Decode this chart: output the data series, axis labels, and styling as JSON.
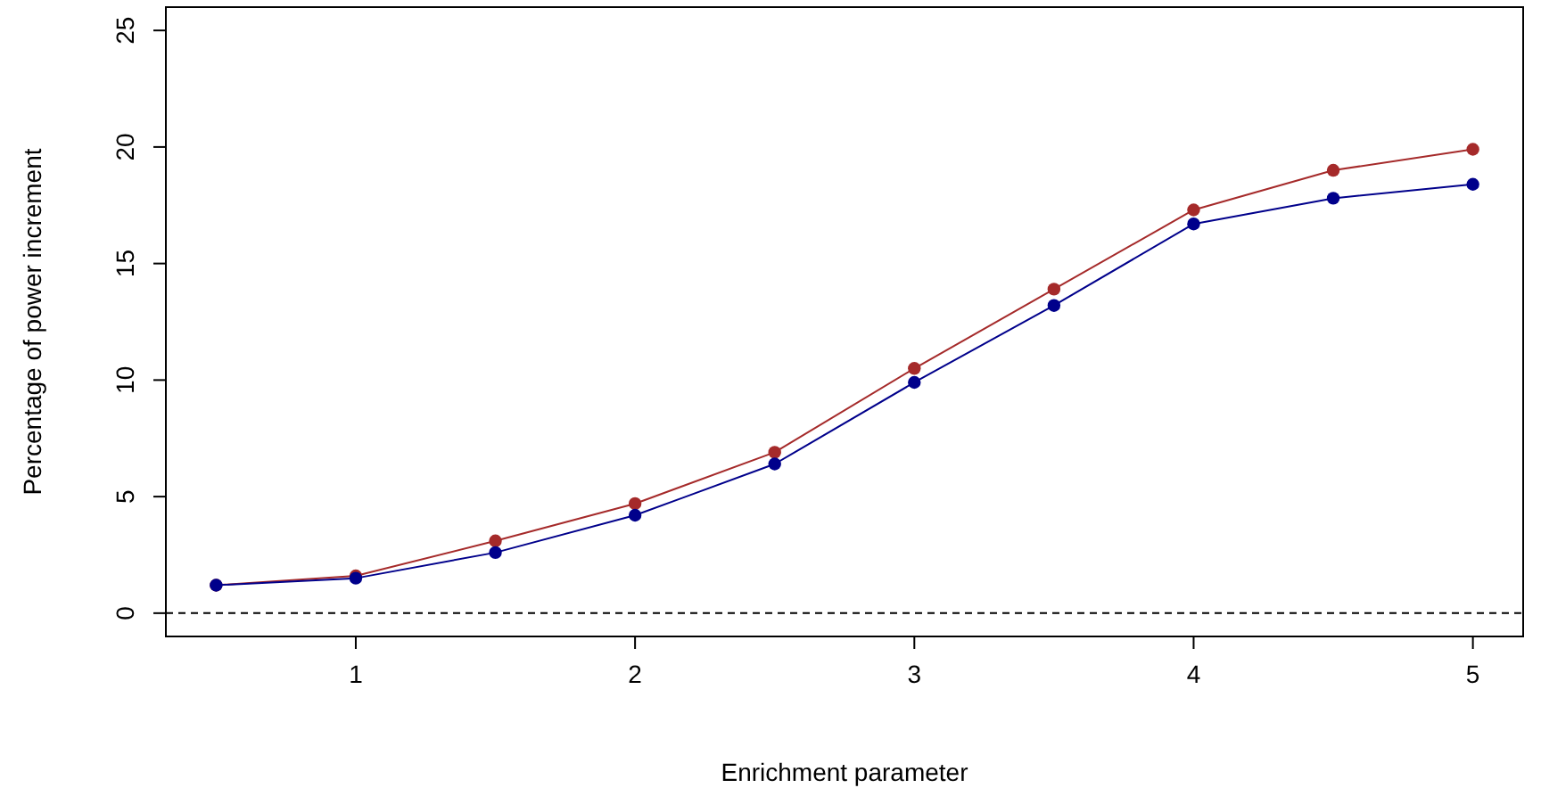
{
  "chart_data": {
    "type": "line",
    "xlabel": "Enrichment parameter",
    "ylabel": "Percentage of power increment",
    "x": [
      0.5,
      1,
      1.5,
      2,
      2.5,
      3,
      3.5,
      4,
      4.5,
      5
    ],
    "series": [
      {
        "color": "#a52a2a",
        "values": [
          1.2,
          1.6,
          3.1,
          4.7,
          6.9,
          10.5,
          13.9,
          17.3,
          19.0,
          19.9
        ]
      },
      {
        "color": "#00008b",
        "values": [
          1.2,
          1.5,
          2.6,
          4.2,
          6.4,
          9.9,
          13.2,
          16.7,
          17.8,
          18.4
        ]
      }
    ],
    "xlim": [
      0.32,
      5.18
    ],
    "ylim": [
      -1,
      26
    ],
    "xticks": [
      1,
      2,
      3,
      4,
      5
    ],
    "yticks": [
      0,
      5,
      10,
      15,
      20,
      25
    ],
    "marker": "circle",
    "line_style": "solid",
    "ref_lines": [
      {
        "axis": "y",
        "value": 0,
        "line_style": "dashed",
        "color": "#000000"
      }
    ]
  }
}
